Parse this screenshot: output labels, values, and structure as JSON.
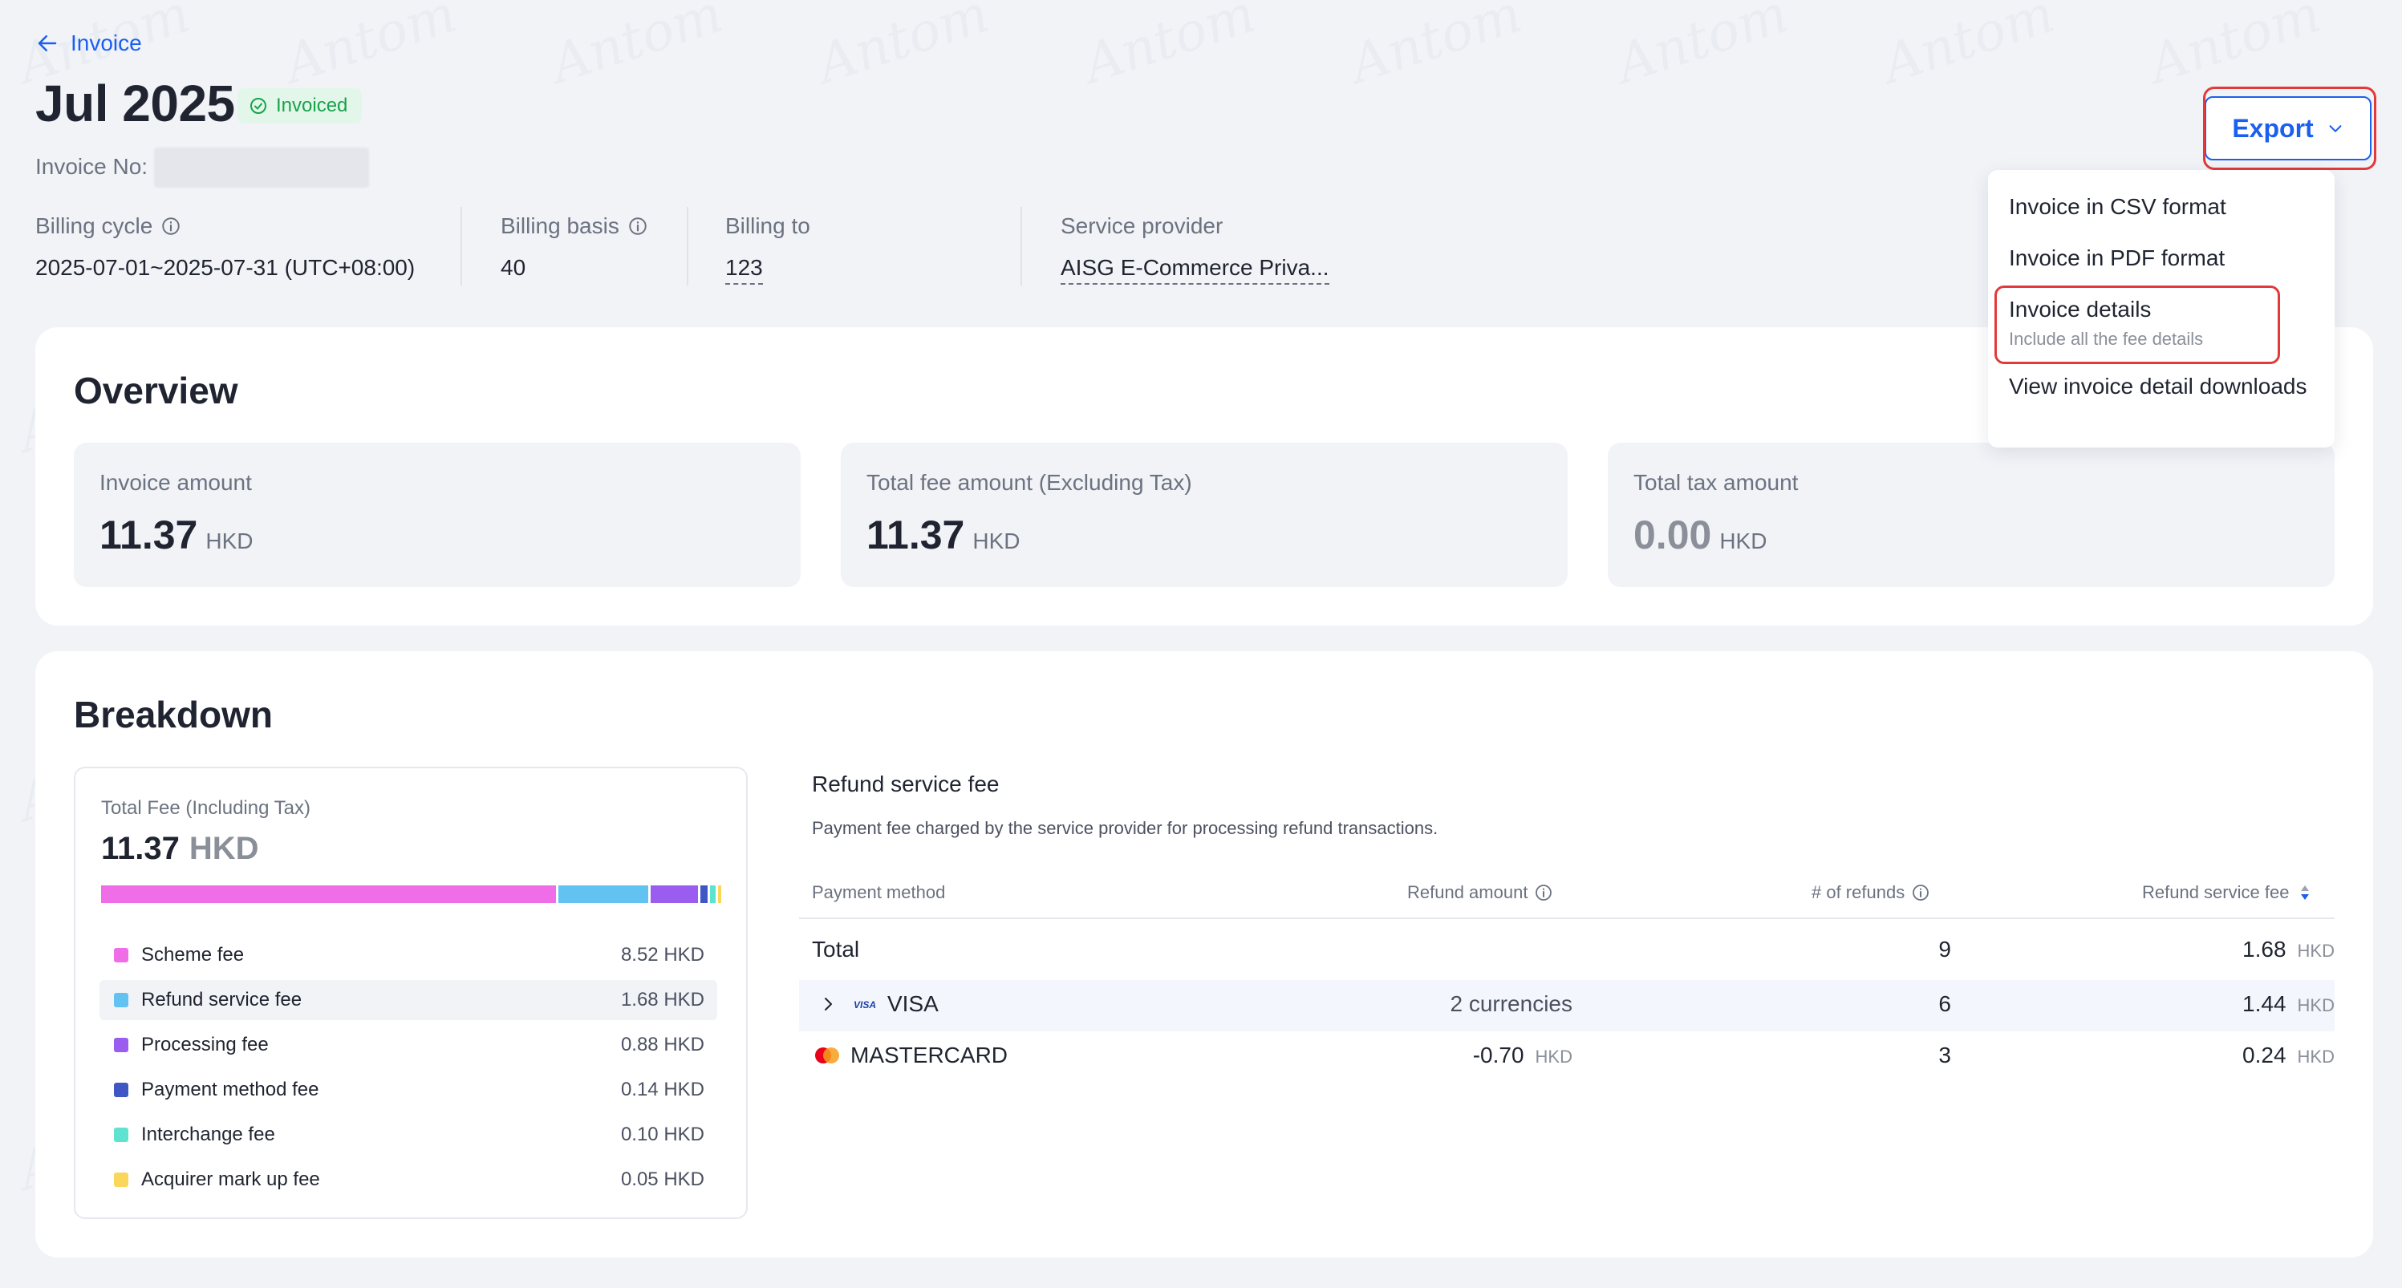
{
  "header": {
    "back_label": "Invoice",
    "title": "Jul 2025",
    "status_badge": "Invoiced",
    "invoice_no_label": "Invoice No:",
    "meta": [
      {
        "label": "Billing cycle",
        "value": "2025-07-01~2025-07-31 (UTC+08:00)",
        "info_icon": true
      },
      {
        "label": "Billing basis",
        "value": "40",
        "info_icon": true
      },
      {
        "label": "Billing to",
        "value": "123"
      },
      {
        "label": "Service provider",
        "value": "AISG E-Commerce Priva..."
      }
    ]
  },
  "export": {
    "button_label": "Export",
    "menu": [
      {
        "label": "Invoice in CSV format"
      },
      {
        "label": "Invoice in PDF format"
      },
      {
        "label": "Invoice details",
        "sublabel": "Include all the fee details"
      },
      {
        "label": "View invoice detail downloads"
      }
    ]
  },
  "overview": {
    "title": "Overview",
    "metrics": [
      {
        "label": "Invoice amount",
        "value": "11.37",
        "unit": "HKD"
      },
      {
        "label": "Total fee amount (Excluding Tax)",
        "value": "11.37",
        "unit": "HKD"
      },
      {
        "label": "Total tax amount",
        "value": "0.00",
        "unit": "HKD"
      }
    ]
  },
  "breakdown": {
    "title": "Breakdown",
    "total_label": "Total Fee (Including Tax)",
    "total_value": "11.37",
    "total_unit": "HKD",
    "fees": [
      {
        "name": "Scheme fee",
        "amount": "8.52 HKD",
        "value": 8.52,
        "color": "#f06de8"
      },
      {
        "name": "Refund service fee",
        "amount": "1.68 HKD",
        "value": 1.68,
        "color": "#62c3f2"
      },
      {
        "name": "Processing fee",
        "amount": "0.88 HKD",
        "value": 0.88,
        "color": "#9b5cf0"
      },
      {
        "name": "Payment method fee",
        "amount": "0.14 HKD",
        "value": 0.14,
        "color": "#3f57c4"
      },
      {
        "name": "Interchange fee",
        "amount": "0.10 HKD",
        "value": 0.1,
        "color": "#5ee3d0"
      },
      {
        "name": "Acquirer mark up fee",
        "amount": "0.05 HKD",
        "value": 0.05,
        "color": "#fad75a"
      }
    ],
    "detail": {
      "title": "Refund service fee",
      "description": "Payment fee charged by the service provider for processing refund transactions.",
      "columns": [
        "Payment method",
        "Refund amount",
        "# of refunds",
        "Refund service fee"
      ],
      "rows": [
        {
          "method": "Total",
          "refund_amount": "",
          "refund_unit": "",
          "refunds": "9",
          "fee": "1.68",
          "fee_unit": "HKD"
        },
        {
          "method": "VISA",
          "refund_amount": "2 currencies",
          "refund_unit": "",
          "refunds": "6",
          "fee": "1.44",
          "fee_unit": "HKD",
          "logo": "VISA"
        },
        {
          "method": "MASTERCARD",
          "refund_amount": "-0.70",
          "refund_unit": "HKD",
          "refunds": "3",
          "fee": "0.24",
          "fee_unit": "HKD"
        }
      ]
    }
  },
  "colors": {
    "accent": "#1a5ff0",
    "success": "#17a34a",
    "highlight_border": "#e23a3a",
    "page_bg": "#f1f3f7"
  },
  "watermark": "Antom"
}
